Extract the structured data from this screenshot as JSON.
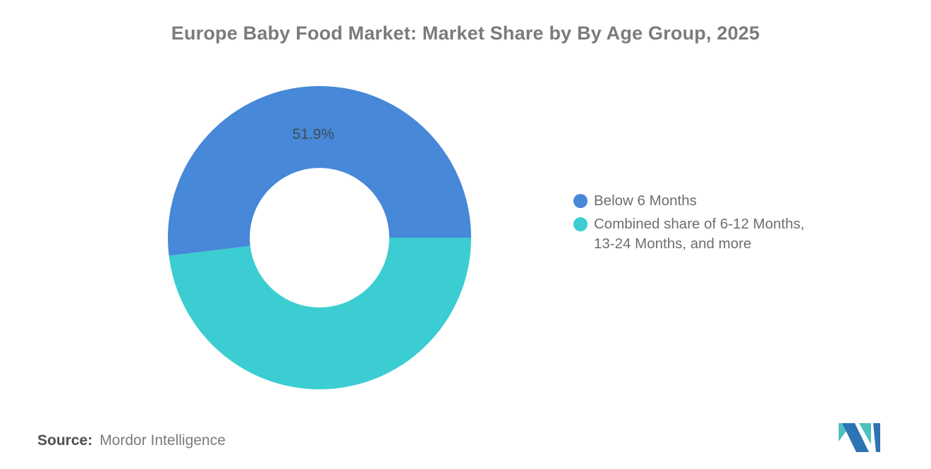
{
  "title": {
    "text": "Europe Baby Food Market: Market Share by By Age Group, 2025",
    "color": "#7b7b7b"
  },
  "chart_data": {
    "type": "pie",
    "title": "Europe Baby Food Market: Market Share by By Age Group, 2025",
    "inner_radius_pct": 46,
    "start_angle_deg": 90,
    "direction": "counterclockwise",
    "legend_position": "right",
    "slices": [
      {
        "label": "Below 6 Months",
        "value": 51.9,
        "color": "#4788d8",
        "data_label": "51.9%"
      },
      {
        "label": "Combined share of 6-12 Months, 13-24 Months, and more",
        "value": 48.1,
        "color": "#3bcdd1",
        "data_label": ""
      }
    ]
  },
  "legend": {
    "items": [
      {
        "label": "Below 6 Months",
        "color": "#4788d8"
      },
      {
        "label": "Combined share of 6-12 Months,\n13-24 Months, and more",
        "color": "#3bcdd1"
      }
    ]
  },
  "footer": {
    "source_label": "Source:",
    "source_value": "Mordor Intelligence"
  },
  "logo": {
    "teal": "#4ec0bd",
    "blue": "#2e73b3"
  }
}
